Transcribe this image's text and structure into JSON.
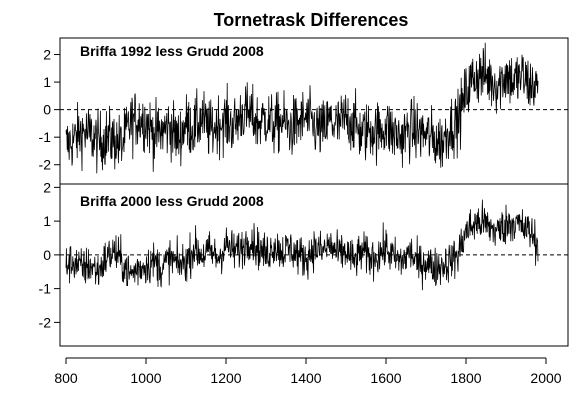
{
  "chart_data": {
    "type": "line",
    "title": "Tornetrask Differences",
    "x_ticks": [
      800,
      1000,
      1200,
      1400,
      1600,
      1800,
      2000
    ],
    "xlim": [
      785,
      2055
    ],
    "grid": false,
    "reference_line": {
      "y": 0,
      "style": "dashed"
    },
    "panels": [
      {
        "label": "Briffa 1992 less Grudd 2008",
        "ylim": [
          -2.7,
          2.6
        ],
        "y_ticks": [
          -2,
          -1,
          0,
          1,
          2
        ],
        "series": [
          {
            "x": [
              800,
              820,
              840,
              860,
              880,
              900,
              920,
              940,
              960,
              980,
              1000,
              1020,
              1040,
              1060,
              1080,
              1100,
              1120,
              1140,
              1160,
              1180,
              1200,
              1220,
              1240,
              1260,
              1280,
              1300,
              1320,
              1340,
              1360,
              1380,
              1400,
              1420,
              1440,
              1460,
              1480,
              1500,
              1520,
              1540,
              1560,
              1580,
              1600,
              1620,
              1640,
              1660,
              1680,
              1700,
              1720,
              1740,
              1760,
              1780,
              1800,
              1820,
              1840,
              1860,
              1880,
              1900,
              1920,
              1940,
              1960,
              1980
            ],
            "values": [
              -1.3,
              -1.1,
              -0.8,
              -0.9,
              -1.2,
              -1.0,
              -1.1,
              -1.3,
              -0.5,
              -0.3,
              -0.4,
              -0.9,
              -0.8,
              -0.6,
              -1.1,
              -0.5,
              -0.7,
              -0.3,
              -0.8,
              -0.5,
              -0.4,
              -0.6,
              -0.1,
              -0.2,
              -0.5,
              -0.3,
              -0.6,
              -0.4,
              -0.7,
              -0.5,
              -0.3,
              -0.6,
              -0.8,
              -0.4,
              -0.6,
              -0.3,
              -0.5,
              -0.9,
              -0.7,
              -0.8,
              -0.6,
              -0.9,
              -1.0,
              -0.7,
              -0.8,
              -0.9,
              -1.1,
              -1.2,
              -0.6,
              -0.4,
              0.6,
              1.2,
              1.3,
              1.1,
              0.9,
              1.3,
              1.0,
              1.2,
              0.9,
              0.8
            ]
          }
        ]
      },
      {
        "label": "Briffa 2000 less Grudd 2008",
        "ylim": [
          -2.7,
          2.1
        ],
        "y_ticks": [
          -2,
          -1,
          0,
          1,
          2
        ],
        "series": [
          {
            "x": [
              800,
              820,
              840,
              860,
              880,
              900,
              920,
              940,
              960,
              980,
              1000,
              1020,
              1040,
              1060,
              1080,
              1100,
              1120,
              1140,
              1160,
              1180,
              1200,
              1220,
              1240,
              1260,
              1280,
              1300,
              1320,
              1340,
              1360,
              1380,
              1400,
              1420,
              1440,
              1460,
              1480,
              1500,
              1520,
              1540,
              1560,
              1580,
              1600,
              1620,
              1640,
              1660,
              1680,
              1700,
              1720,
              1740,
              1760,
              1780,
              1800,
              1820,
              1840,
              1860,
              1880,
              1900,
              1920,
              1940,
              1960,
              1980
            ],
            "values": [
              -0.3,
              -0.2,
              -0.4,
              -0.3,
              -0.5,
              -0.1,
              0.1,
              -0.2,
              -0.6,
              -0.4,
              -0.3,
              -0.2,
              -0.4,
              -0.1,
              -0.3,
              -0.2,
              0.2,
              0.0,
              0.1,
              -0.1,
              0.3,
              0.1,
              0.2,
              0.5,
              0.2,
              0.0,
              0.3,
              0.1,
              0.2,
              0.0,
              -0.1,
              0.2,
              0.1,
              0.3,
              0.0,
              0.1,
              -0.2,
              0.1,
              -0.1,
              0.0,
              0.2,
              -0.1,
              -0.2,
              0.1,
              -0.3,
              -0.2,
              -0.4,
              -0.3,
              -0.2,
              0.0,
              0.7,
              0.9,
              1.0,
              0.8,
              0.7,
              0.9,
              1.0,
              0.8,
              0.7,
              0.3
            ]
          }
        ]
      }
    ]
  }
}
